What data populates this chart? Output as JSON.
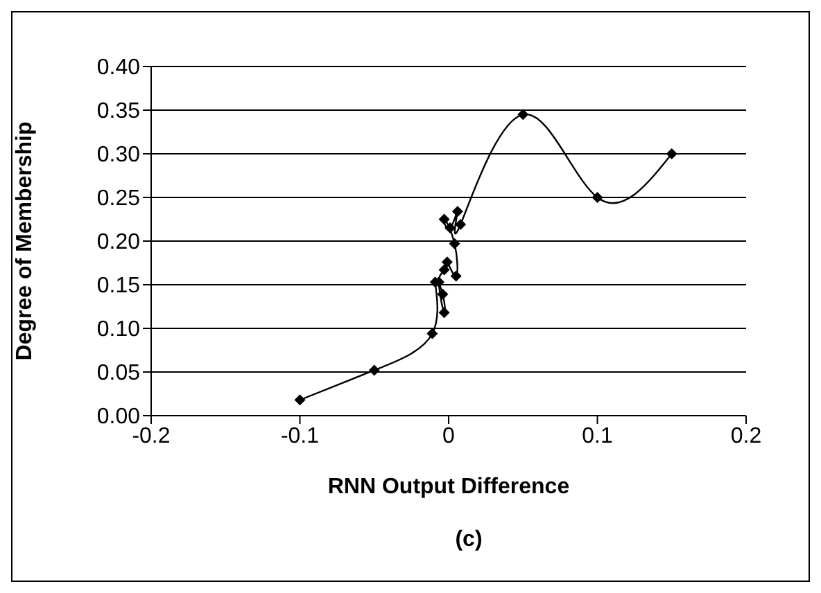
{
  "chart_data": {
    "type": "line",
    "xlabel": "RNN Output Difference",
    "ylabel": "Degree of Membership",
    "annotations": [
      "(c)"
    ],
    "x": [
      -0.1,
      -0.05,
      -0.011,
      -0.009,
      -0.004,
      -0.003,
      -0.0065,
      -0.003,
      -0.001,
      0.005,
      0.004,
      -0.003,
      0.001,
      0.006,
      0.008,
      0.05,
      0.1,
      0.15
    ],
    "series": [
      {
        "color": "#000000",
        "values": [
          0.018,
          0.052,
          0.094,
          0.153,
          0.139,
          0.118,
          0.153,
          0.167,
          0.176,
          0.16,
          0.197,
          0.225,
          0.215,
          0.234,
          0.219,
          0.345,
          0.25,
          0.3
        ]
      }
    ],
    "xlim": [
      -0.2,
      0.2
    ],
    "xticks": [
      -0.2,
      -0.1,
      0,
      0.1,
      0.2
    ],
    "ylim": [
      0,
      0.4
    ],
    "yticks": [
      {
        "value": 0,
        "label": "0.00"
      },
      {
        "value": 0.05,
        "label": "0.05"
      },
      {
        "value": 0.1,
        "label": "0.10"
      },
      {
        "value": 0.15,
        "label": "0.15"
      },
      {
        "value": 0.2,
        "label": "0.20"
      },
      {
        "value": 0.25,
        "label": "0.25"
      },
      {
        "value": 0.3,
        "label": "0.30"
      },
      {
        "value": 0.35,
        "label": "0.35"
      },
      {
        "value": 0.4,
        "label": "0.40"
      }
    ],
    "grid": "y",
    "marker": "diamond",
    "line_style": "solid"
  }
}
